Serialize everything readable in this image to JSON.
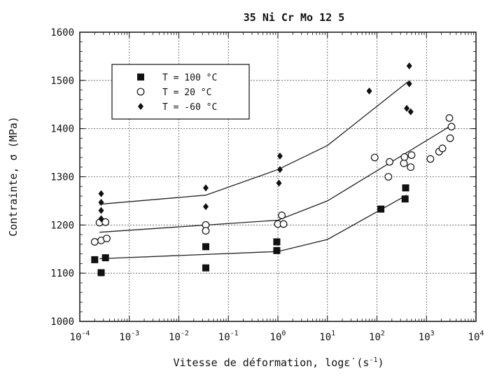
{
  "chart_data": {
    "type": "scatter",
    "title": "35 Ni Cr Mo 12 5",
    "xlabel": "Vitesse de déformation, logε̇ (s⁻¹)",
    "xlabel_parts": {
      "main": "Vitesse de déformation, log",
      "eps": "ε̇",
      "unit_open": " (s",
      "unit_sup": "-1",
      "unit_close": ")"
    },
    "ylabel": "Contrainte, σ (MPa)",
    "x_scale": "log",
    "xlim": [
      0.0001,
      10000
    ],
    "ylim": [
      1000,
      1600
    ],
    "x_ticks": [
      {
        "value": 0.0001,
        "base": "10",
        "exp": "-4"
      },
      {
        "value": 0.001,
        "base": "10",
        "exp": "-3"
      },
      {
        "value": 0.01,
        "base": "10",
        "exp": "-2"
      },
      {
        "value": 0.1,
        "base": "10",
        "exp": "-1"
      },
      {
        "value": 1,
        "base": "10",
        "exp": "0"
      },
      {
        "value": 10,
        "base": "10",
        "exp": "1"
      },
      {
        "value": 100,
        "base": "10",
        "exp": "2"
      },
      {
        "value": 1000,
        "base": "10",
        "exp": "3"
      },
      {
        "value": 10000,
        "base": "10",
        "exp": "4"
      }
    ],
    "y_ticks": [
      "1000",
      "1100",
      "1200",
      "1300",
      "1400",
      "1500",
      "1600"
    ],
    "grid": true,
    "legend_position": "top-left",
    "series": [
      {
        "name": "T = 100 °C",
        "marker": "square",
        "points": [
          [
            0.0002,
            1128
          ],
          [
            0.00027,
            1101
          ],
          [
            0.00033,
            1132
          ],
          [
            0.035,
            1155
          ],
          [
            0.035,
            1111
          ],
          [
            0.95,
            1165
          ],
          [
            0.95,
            1147
          ],
          [
            120,
            1233
          ],
          [
            380,
            1277
          ],
          [
            370,
            1254
          ]
        ],
        "fit": [
          [
            0.00025,
            1130
          ],
          [
            1,
            1145
          ],
          [
            10,
            1170
          ],
          [
            400,
            1262
          ]
        ]
      },
      {
        "name": "T = 20 °C",
        "marker": "circle-open",
        "points": [
          [
            0.0002,
            1165
          ],
          [
            0.00025,
            1205
          ],
          [
            0.00027,
            1168
          ],
          [
            0.00033,
            1206
          ],
          [
            0.00035,
            1172
          ],
          [
            0.035,
            1200
          ],
          [
            0.035,
            1188
          ],
          [
            1.0,
            1202
          ],
          [
            1.2,
            1220
          ],
          [
            1.3,
            1202
          ],
          [
            90,
            1340
          ],
          [
            170,
            1300
          ],
          [
            180,
            1331
          ],
          [
            350,
            1328
          ],
          [
            360,
            1341
          ],
          [
            480,
            1320
          ],
          [
            500,
            1345
          ],
          [
            1200,
            1337
          ],
          [
            1800,
            1352
          ],
          [
            2100,
            1359
          ],
          [
            2900,
            1422
          ],
          [
            3000,
            1380
          ],
          [
            3200,
            1404
          ]
        ],
        "fit": [
          [
            0.00025,
            1185
          ],
          [
            1,
            1210
          ],
          [
            10,
            1250
          ],
          [
            3000,
            1405
          ]
        ]
      },
      {
        "name": "T = -60 °C",
        "marker": "diamond",
        "points": [
          [
            0.00027,
            1265
          ],
          [
            0.00027,
            1247
          ],
          [
            0.00027,
            1230
          ],
          [
            0.00027,
            1213
          ],
          [
            0.035,
            1277
          ],
          [
            0.035,
            1238
          ],
          [
            1.1,
            1343
          ],
          [
            1.1,
            1315
          ],
          [
            1.05,
            1287
          ],
          [
            70,
            1478
          ],
          [
            400,
            1442
          ],
          [
            450,
            1530
          ],
          [
            450,
            1493
          ],
          [
            480,
            1435
          ]
        ],
        "fit": [
          [
            0.00025,
            1243
          ],
          [
            0.035,
            1262
          ],
          [
            1,
            1315
          ],
          [
            10,
            1365
          ],
          [
            420,
            1497
          ]
        ]
      }
    ]
  }
}
